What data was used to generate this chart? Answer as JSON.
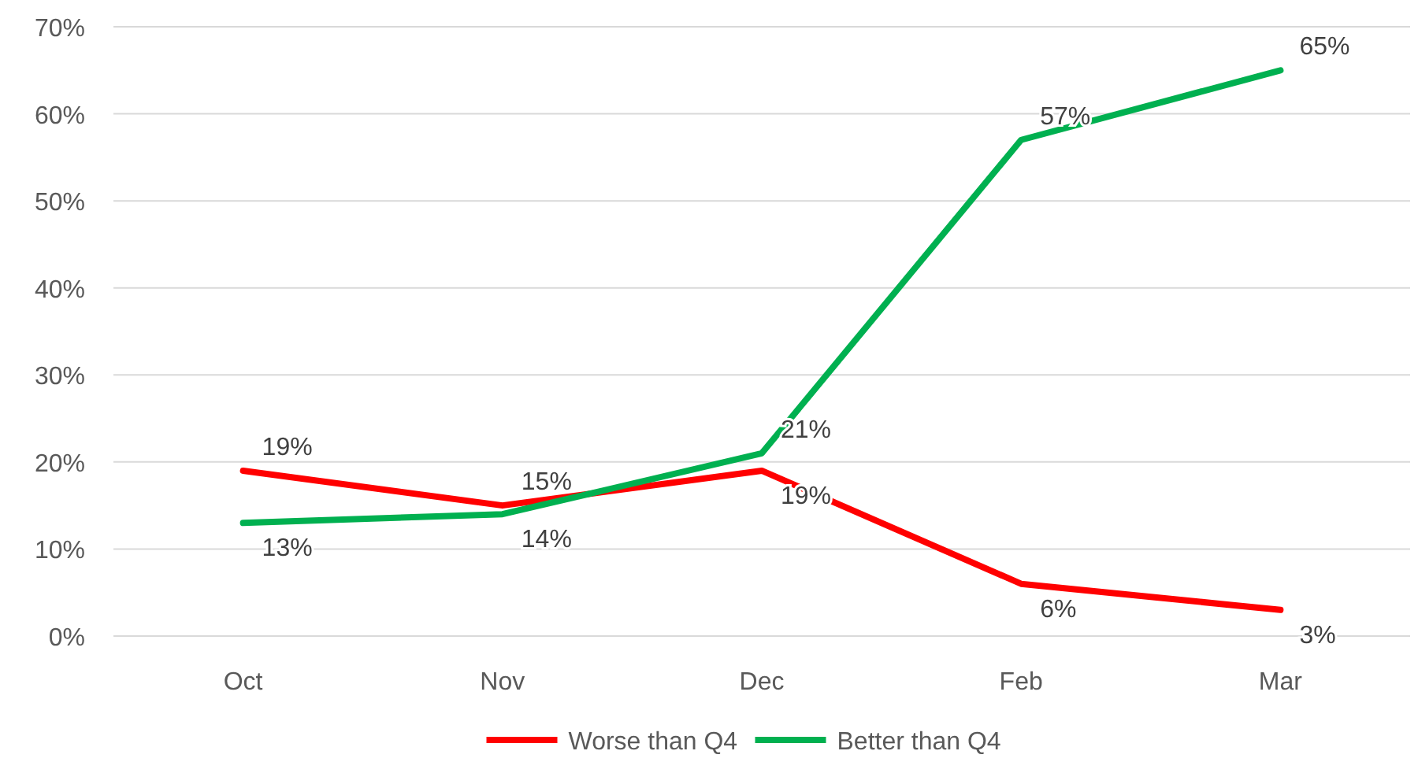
{
  "chart_data": {
    "type": "line",
    "categories": [
      "Oct",
      "Nov",
      "Dec",
      "Feb",
      "Mar"
    ],
    "series": [
      {
        "name": "Worse than Q4",
        "color": "#ff0000",
        "values": [
          19,
          15,
          19,
          6,
          3
        ],
        "value_labels": [
          "19%",
          "15%",
          "19%",
          "6%",
          "3%"
        ]
      },
      {
        "name": "Better than Q4",
        "color": "#00b050",
        "values": [
          13,
          14,
          21,
          57,
          65
        ],
        "value_labels": [
          "13%",
          "14%",
          "21%",
          "57%",
          "65%"
        ]
      }
    ],
    "ylim": [
      0,
      70
    ],
    "yticks": [
      {
        "value": 0,
        "label": "0%"
      },
      {
        "value": 10,
        "label": "10%"
      },
      {
        "value": 20,
        "label": "20%"
      },
      {
        "value": 30,
        "label": "30%"
      },
      {
        "value": 40,
        "label": "40%"
      },
      {
        "value": 50,
        "label": "50%"
      },
      {
        "value": 60,
        "label": "60%"
      },
      {
        "value": 70,
        "label": "70%"
      }
    ],
    "grid": "y",
    "legend": "bottom",
    "marker": "none",
    "line_style": "solid"
  }
}
